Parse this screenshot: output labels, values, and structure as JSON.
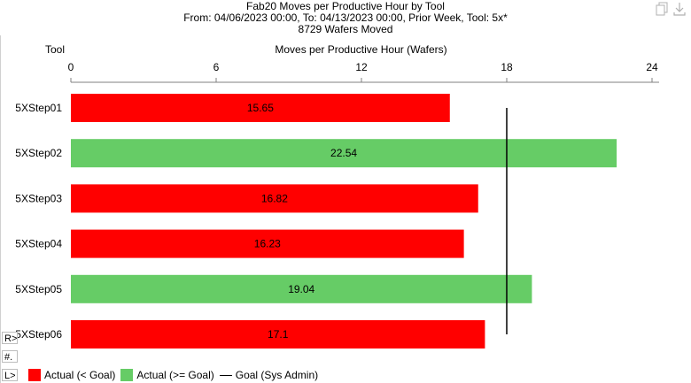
{
  "chart_data": {
    "type": "bar",
    "orientation": "horizontal",
    "title": "Fab20 Moves per Productive Hour by Tool",
    "subtitle": "From: 04/06/2023 00:00, To: 04/13/2023 00:00, Prior Week, Tool: 5x*",
    "subtitle2": "8729 Wafers Moved",
    "category_axis_label": "Tool",
    "xlabel": "Moves per Productive Hour (Wafers)",
    "xlim": [
      0,
      24
    ],
    "x_ticks": [
      0,
      6,
      12,
      18,
      24
    ],
    "categories": [
      "5XStep01",
      "5XStep02",
      "5XStep03",
      "5XStep04",
      "5XStep05",
      "5XStep06"
    ],
    "values": [
      15.65,
      22.54,
      16.82,
      16.23,
      19.04,
      17.1
    ],
    "value_labels": [
      "15.65",
      "22.54",
      "16.82",
      "16.23",
      "19.04",
      "17.1"
    ],
    "goal": 18,
    "legend": [
      {
        "label": "Actual (< Goal)",
        "color": "#ff0000",
        "kind": "box"
      },
      {
        "label": "Actual (>= Goal)",
        "color": "#66cc66",
        "kind": "box"
      },
      {
        "label": "Goal (Sys Admin)",
        "color": "#000000",
        "kind": "line"
      }
    ],
    "legend_position": "bottom-left",
    "grid": false,
    "below_goal_color": "#ff0000",
    "at_or_above_goal_color": "#66cc66"
  },
  "side_buttons": [
    "R>",
    "#.",
    "L>"
  ],
  "toolbar": {
    "copy_icon": "copy-icon",
    "download_icon": "download-icon"
  }
}
